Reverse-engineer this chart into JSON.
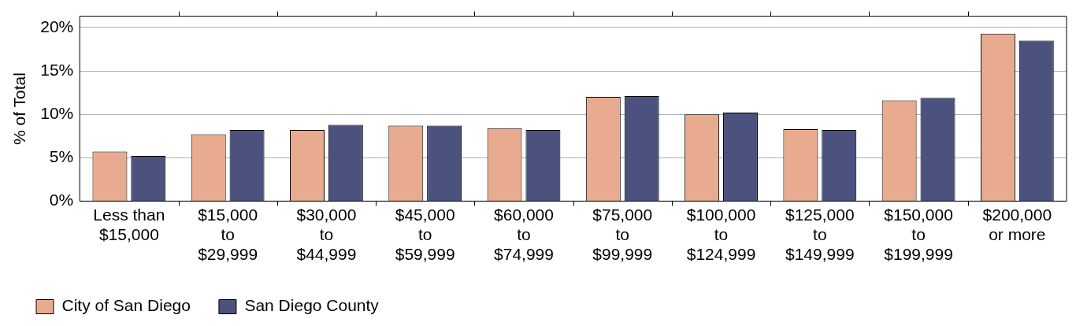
{
  "chart_data": {
    "type": "bar",
    "ylabel": "% of Total",
    "categories": [
      "Less than $15,000",
      "$15,000 to $29,999",
      "$30,000 to $44,999",
      "$45,000 to $59,999",
      "$60,000 to $74,999",
      "$75,000 to $99,999",
      "$100,000 to $124,999",
      "$125,000 to $149,999",
      "$150,000 to $199,999",
      "$200,000 or more"
    ],
    "series": [
      {
        "name": "City of San Diego",
        "color": "#e8ab90",
        "values": [
          5.7,
          7.7,
          8.2,
          8.7,
          8.4,
          12.0,
          10.0,
          8.3,
          11.6,
          19.3
        ]
      },
      {
        "name": "San Diego County",
        "color": "#4c527e",
        "values": [
          5.2,
          8.2,
          8.8,
          8.7,
          8.2,
          12.1,
          10.2,
          8.2,
          11.9,
          18.5
        ]
      }
    ],
    "ylim": [
      0,
      21.3
    ],
    "yticks": [
      {
        "value": 0,
        "label": "0%"
      },
      {
        "value": 5,
        "label": "5%"
      },
      {
        "value": 10,
        "label": "10%"
      },
      {
        "value": 15,
        "label": "15%"
      },
      {
        "value": 20,
        "label": "20%"
      }
    ],
    "grid": "y",
    "legend": "bottom left"
  }
}
